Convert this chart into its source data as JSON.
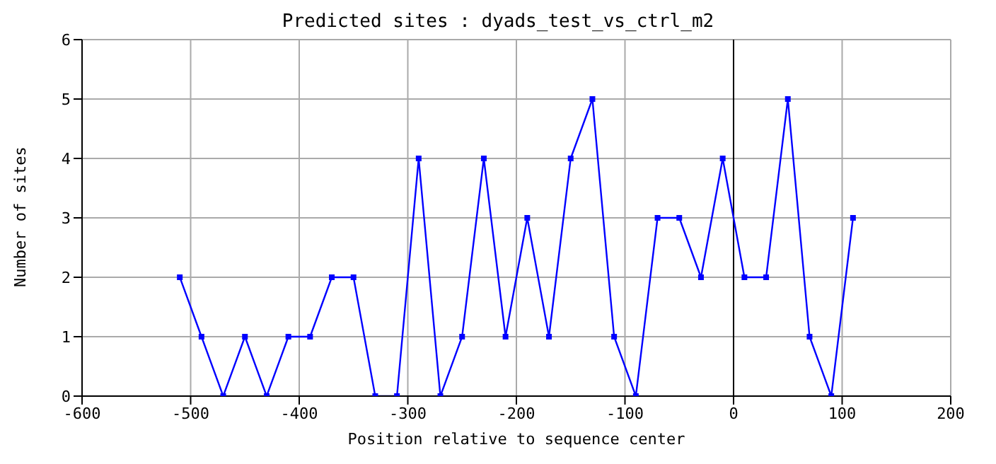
{
  "chart_data": {
    "type": "line",
    "title": "Predicted sites : dyads_test_vs_ctrl_m2",
    "xlabel": "Position relative to sequence center",
    "ylabel": "Number of sites",
    "x": [
      -510,
      -490,
      -470,
      -450,
      -430,
      -410,
      -390,
      -370,
      -350,
      -330,
      -310,
      -290,
      -270,
      -250,
      -230,
      -210,
      -190,
      -170,
      -150,
      -130,
      -110,
      -90,
      -70,
      -50,
      -30,
      -10,
      10,
      30,
      50,
      70,
      90,
      110
    ],
    "series": [
      {
        "color": "#0000ff",
        "values": [
          2,
          1,
          0,
          1,
          0,
          1,
          1,
          2,
          2,
          0,
          0,
          4,
          0,
          1,
          4,
          1,
          3,
          1,
          4,
          5,
          1,
          0,
          3,
          3,
          2,
          4,
          2,
          2,
          5,
          1,
          0,
          3
        ]
      }
    ],
    "xlim": [
      -600,
      200
    ],
    "xticks": [
      -600,
      -500,
      -400,
      -300,
      -200,
      -100,
      0,
      100,
      200
    ],
    "ylim": [
      0,
      6
    ],
    "yticks": [
      0,
      1,
      2,
      3,
      4,
      5,
      6
    ],
    "grid": true,
    "marker": "square",
    "line_style": "solid",
    "ref_lines": [
      {
        "axis": "x",
        "value": 0,
        "color": "#000000"
      }
    ]
  }
}
